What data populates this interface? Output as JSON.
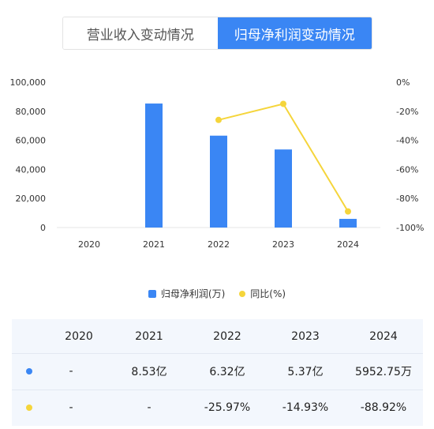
{
  "tabs": [
    {
      "label": "营业收入变动情况",
      "active": false
    },
    {
      "label": "归母净利润变动情况",
      "active": true
    }
  ],
  "colors": {
    "bar": "#3a86f4",
    "line": "#f5d53b",
    "grid": "#e6e6e6"
  },
  "chart_data": {
    "type": "bar",
    "categories": [
      "2020",
      "2021",
      "2022",
      "2023",
      "2024"
    ],
    "series": [
      {
        "name": "归母净利润(万)",
        "type": "bar",
        "axis": "left",
        "values": [
          null,
          85300,
          63200,
          53700,
          5952.75
        ]
      },
      {
        "name": "同比(%)",
        "type": "line",
        "axis": "right",
        "values": [
          null,
          null,
          -25.97,
          -14.93,
          -88.92
        ]
      }
    ],
    "y_left": {
      "ticks": [
        "100,000",
        "80,000",
        "60,000",
        "40,000",
        "20,000",
        "0"
      ],
      "range": [
        0,
        100000
      ]
    },
    "y_right": {
      "ticks": [
        "0%",
        "-20%",
        "-40%",
        "-60%",
        "-80%",
        "-100%"
      ],
      "range": [
        -100,
        0
      ]
    },
    "legend_position": "bottom",
    "grid": true
  },
  "legend": {
    "bar_label": "归母净利润(万)",
    "line_label": "同比(%)"
  },
  "table": {
    "headers": [
      "2020",
      "2021",
      "2022",
      "2023",
      "2024"
    ],
    "rows": [
      {
        "marker": "bar",
        "cells": [
          "-",
          "8.53亿",
          "6.32亿",
          "5.37亿",
          "5952.75万"
        ]
      },
      {
        "marker": "line",
        "cells": [
          "-",
          "-",
          "-25.97%",
          "-14.93%",
          "-88.92%"
        ]
      }
    ]
  }
}
